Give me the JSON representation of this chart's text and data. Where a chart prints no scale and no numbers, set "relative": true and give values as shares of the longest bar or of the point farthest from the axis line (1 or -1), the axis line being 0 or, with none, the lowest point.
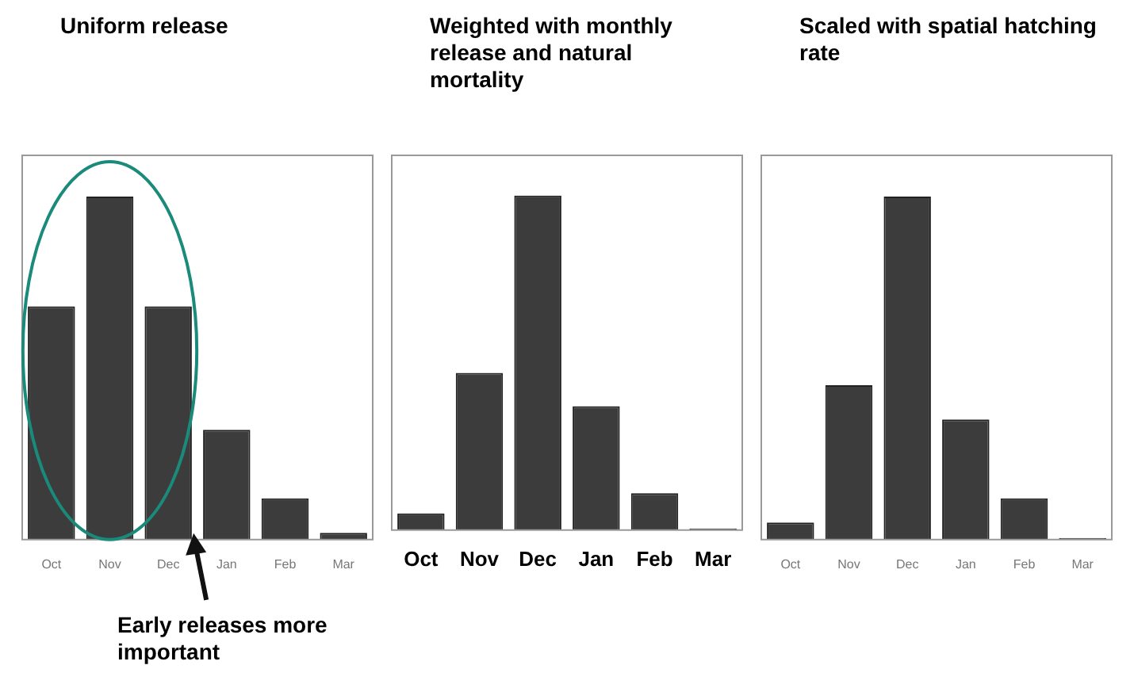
{
  "chart_data": [
    {
      "type": "bar",
      "title": "Uniform release",
      "categories": [
        "Oct",
        "Nov",
        "Dec",
        "Jan",
        "Feb",
        "Mar"
      ],
      "values": [
        0.68,
        1,
        0.68,
        0.32,
        0.12,
        0.02
      ],
      "color": "#3c3c3c",
      "relative": true,
      "annotations": [
        "Early releases more important"
      ]
    },
    {
      "type": "bar",
      "title": "Weighted with monthly release and natural mortality",
      "categories": [
        "Oct",
        "Nov",
        "Dec",
        "Jan",
        "Feb",
        "Mar"
      ],
      "values": [
        0.05,
        0.47,
        1,
        0.37,
        0.11,
        0.005
      ],
      "color": "#3c3c3c",
      "relative": true
    },
    {
      "type": "bar",
      "title": "Scaled with spatial hatching rate",
      "categories": [
        "Oct",
        "Nov",
        "Dec",
        "Jan",
        "Feb",
        "Mar"
      ],
      "values": [
        0.05,
        0.45,
        1,
        0.35,
        0.12,
        0.005
      ],
      "color": "#3c3c3c",
      "relative": true
    }
  ]
}
